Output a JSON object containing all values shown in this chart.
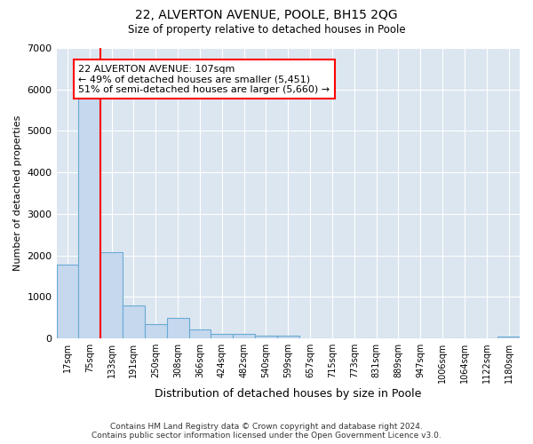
{
  "title_line1": "22, ALVERTON AVENUE, POOLE, BH15 2QG",
  "title_line2": "Size of property relative to detached houses in Poole",
  "xlabel": "Distribution of detached houses by size in Poole",
  "ylabel": "Number of detached properties",
  "bar_labels": [
    "17sqm",
    "75sqm",
    "133sqm",
    "191sqm",
    "250sqm",
    "308sqm",
    "366sqm",
    "424sqm",
    "482sqm",
    "540sqm",
    "599sqm",
    "657sqm",
    "715sqm",
    "773sqm",
    "831sqm",
    "889sqm",
    "947sqm",
    "1006sqm",
    "1064sqm",
    "1122sqm",
    "1180sqm"
  ],
  "bar_values": [
    1780,
    5800,
    2080,
    800,
    340,
    500,
    220,
    110,
    100,
    75,
    70,
    0,
    0,
    0,
    0,
    0,
    0,
    0,
    0,
    0,
    50
  ],
  "bar_color": "#c5d8ee",
  "bar_edge_color": "#6aaad4",
  "vline_x": 1.5,
  "vline_color": "red",
  "ylim": [
    0,
    7000
  ],
  "annotation_text": "22 ALVERTON AVENUE: 107sqm\n← 49% of detached houses are smaller (5,451)\n51% of semi-detached houses are larger (5,660) →",
  "annotation_box_color": "white",
  "annotation_box_edge_color": "red",
  "footer_line1": "Contains HM Land Registry data © Crown copyright and database right 2024.",
  "footer_line2": "Contains public sector information licensed under the Open Government Licence v3.0.",
  "plot_background": "#dce6f0"
}
